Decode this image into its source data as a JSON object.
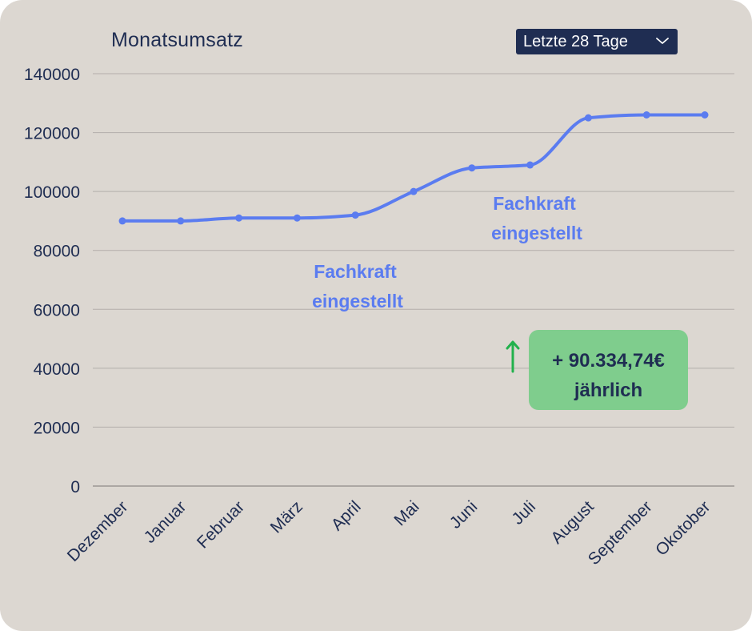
{
  "card": {
    "title": "Monatsumsatz",
    "range_select": {
      "label": "Letzte 28 Tage"
    }
  },
  "chart_data": {
    "type": "line",
    "title": "Monatsumsatz",
    "xlabel": "",
    "ylabel": "",
    "ylim": [
      0,
      140000
    ],
    "yticks": [
      0,
      20000,
      40000,
      60000,
      80000,
      100000,
      120000,
      140000
    ],
    "ytick_labels": [
      "0",
      "20000",
      "40000",
      "60000",
      "80000",
      "100000",
      "120000",
      "140000"
    ],
    "grid": true,
    "categories": [
      "Dezember",
      "Januar",
      "Februar",
      "März",
      "April",
      "Mai",
      "Juni",
      "Juli",
      "August",
      "September",
      "Okotober"
    ],
    "series": [
      {
        "name": "Monatsumsatz",
        "color": "#5b7cf0",
        "values": [
          90000,
          90000,
          91000,
          91000,
          92000,
          100000,
          108000,
          109000,
          125000,
          126000,
          126000
        ]
      }
    ],
    "annotations": [
      {
        "line1": "Fachkraft",
        "line2": "eingestellt",
        "near_category": "April"
      },
      {
        "line1": "Fachkraft",
        "line2": "eingestellt",
        "near_category": "Juli"
      }
    ]
  },
  "badge": {
    "amount": "+ 90.334,74€",
    "period": "jährlich",
    "icon": "arrow-up-icon",
    "color": "#7fcd8d",
    "arrow_color": "#22b14c"
  }
}
